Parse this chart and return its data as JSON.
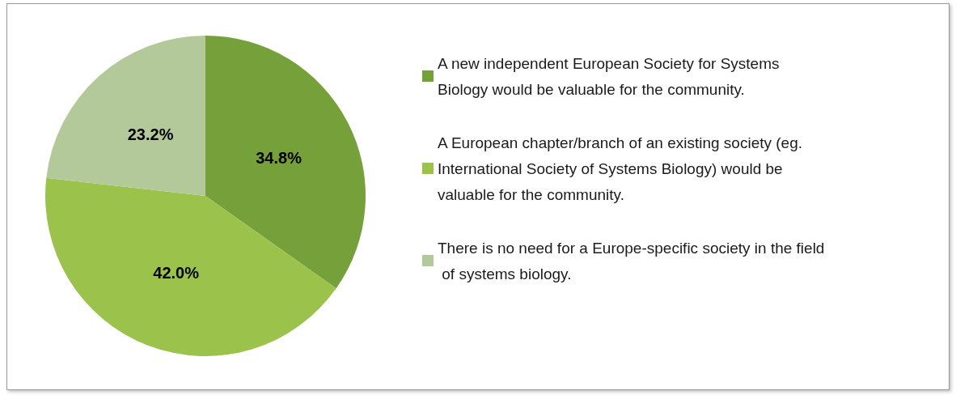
{
  "chart_data": {
    "type": "pie",
    "categories": [
      "A new independent European Society for Systems Biology would be valuable for the community.",
      "A European chapter/branch of an existing society (eg. International Society of Systems Biology) would be valuable for the community.",
      "There is no need for a Europe-specific society in the field of systems biology."
    ],
    "values": [
      34.8,
      42.0,
      23.2
    ],
    "value_labels": [
      "34.8%",
      "42.0%",
      "23.2%"
    ],
    "colors": [
      "#76a03a",
      "#9bc24a",
      "#b4c99a"
    ],
    "legend": "right"
  }
}
